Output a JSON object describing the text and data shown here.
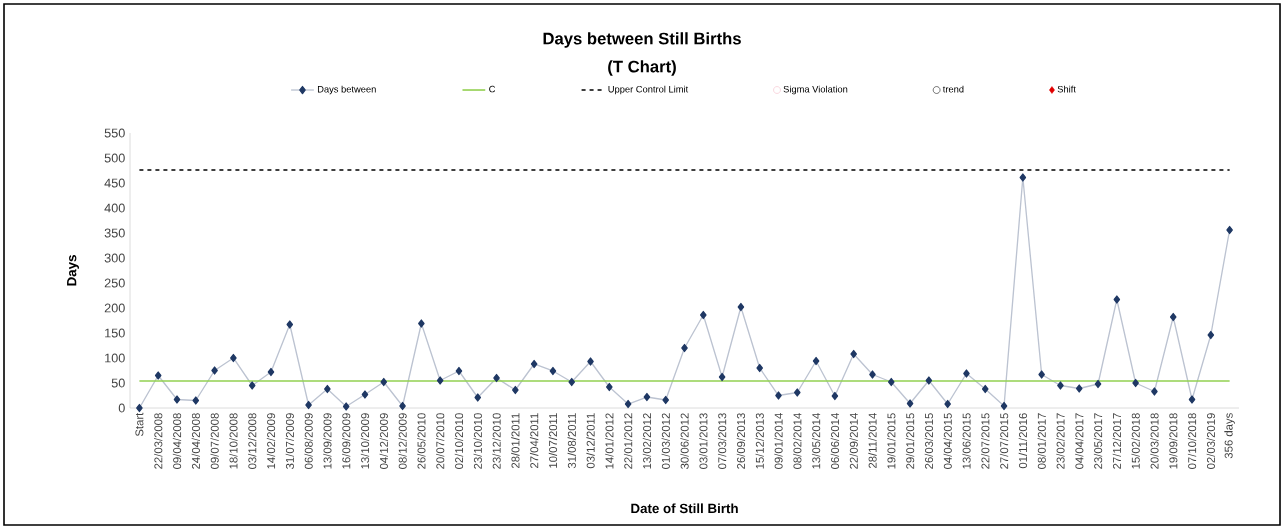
{
  "chart_data": {
    "type": "line",
    "title": "Days between Still Births",
    "subtitle": "(T Chart)",
    "xlabel": "Date of Still Birth",
    "ylabel": "Days",
    "categories": [
      "Start",
      "22/03/2008",
      "09/04/2008",
      "24/04/2008",
      "09/07/2008",
      "18/10/2008",
      "03/12/2008",
      "14/02/2009",
      "31/07/2009",
      "06/08/2009",
      "13/09/2009",
      "16/09/2009",
      "13/10/2009",
      "04/12/2009",
      "08/12/2009",
      "26/05/2010",
      "20/07/2010",
      "02/10/2010",
      "23/10/2010",
      "23/12/2010",
      "28/01/2011",
      "27/04/2011",
      "10/07/2011",
      "31/08/2011",
      "03/12/2011",
      "14/01/2012",
      "22/01/2012",
      "13/02/2012",
      "01/03/2012",
      "30/06/2012",
      "03/01/2013",
      "07/03/2013",
      "26/09/2013",
      "15/12/2013",
      "09/01/2014",
      "08/02/2014",
      "13/05/2014",
      "06/06/2014",
      "22/09/2014",
      "28/11/2014",
      "19/01/2015",
      "29/01/2015",
      "26/03/2015",
      "04/04/2015",
      "13/06/2015",
      "22/07/2015",
      "27/07/2015",
      "01/11/2016",
      "08/01/2017",
      "23/02/2017",
      "04/04/2017",
      "23/05/2017",
      "27/12/2017",
      "15/02/2018",
      "20/03/2018",
      "19/09/2018",
      "07/10/2018",
      "02/03/2019",
      "356 days"
    ],
    "series": [
      {
        "name": "Days between",
        "marker": "diamond",
        "color": "#1f3864",
        "values": [
          0,
          65,
          17,
          15,
          75,
          100,
          45,
          72,
          167,
          6,
          38,
          3,
          27,
          52,
          4,
          169,
          55,
          74,
          21,
          60,
          36,
          88,
          74,
          52,
          93,
          42,
          8,
          22,
          16,
          120,
          186,
          62,
          202,
          80,
          25,
          31,
          94,
          24,
          108,
          67,
          52,
          9,
          55,
          8,
          69,
          38,
          4,
          461,
          67,
          45,
          39,
          48,
          217,
          50,
          33,
          182,
          17,
          146,
          356
        ]
      },
      {
        "name": "Sigma Violation",
        "type": "scatter",
        "marker": "circle",
        "color": "#f4b6c2",
        "values": [
          null,
          null,
          null,
          null,
          null,
          null,
          null,
          null,
          null,
          null,
          null,
          null,
          null,
          null,
          null,
          null,
          null,
          null,
          null,
          null,
          null,
          null,
          null,
          null,
          null,
          null,
          null,
          null,
          null,
          null,
          null,
          null,
          null,
          null,
          null,
          null,
          null,
          null,
          null,
          null,
          null,
          null,
          null,
          null,
          null,
          null,
          null,
          null,
          null,
          null,
          null,
          null,
          null,
          null,
          null,
          null,
          null,
          null,
          null
        ]
      },
      {
        "name": "trend",
        "type": "scatter",
        "marker": "circle",
        "color": "#000000",
        "values": [
          null,
          null,
          null,
          null,
          null,
          null,
          null,
          null,
          null,
          null,
          null,
          null,
          null,
          null,
          null,
          null,
          null,
          null,
          null,
          null,
          null,
          null,
          null,
          null,
          null,
          null,
          null,
          null,
          null,
          null,
          null,
          null,
          null,
          null,
          null,
          null,
          null,
          null,
          null,
          null,
          null,
          null,
          null,
          null,
          null,
          null,
          null,
          null,
          null,
          null,
          null,
          null,
          null,
          null,
          null,
          null,
          null,
          null,
          null
        ]
      },
      {
        "name": "Shift",
        "type": "scatter",
        "marker": "diamond",
        "color": "#e00000",
        "values": [
          null,
          null,
          null,
          null,
          null,
          null,
          null,
          null,
          null,
          null,
          null,
          null,
          null,
          null,
          null,
          null,
          null,
          null,
          null,
          null,
          null,
          null,
          null,
          null,
          null,
          null,
          null,
          null,
          null,
          null,
          null,
          null,
          null,
          null,
          null,
          null,
          null,
          null,
          null,
          null,
          null,
          null,
          null,
          null,
          null,
          null,
          null,
          null,
          null,
          null,
          null,
          null,
          null,
          null,
          null,
          null,
          null,
          null,
          null
        ]
      }
    ],
    "ref_lines": [
      {
        "axis": "y",
        "value": 54,
        "label": "C",
        "color": "#92d050",
        "line_style": "solid"
      },
      {
        "axis": "y",
        "value": 476,
        "label": "Upper Control Limit",
        "color": "#000000",
        "line_style": "dashed"
      }
    ],
    "ylim": [
      0,
      550
    ],
    "yticks": [
      0,
      50,
      100,
      150,
      200,
      250,
      300,
      350,
      400,
      450,
      500,
      550
    ],
    "grid": false,
    "legend": "top"
  }
}
